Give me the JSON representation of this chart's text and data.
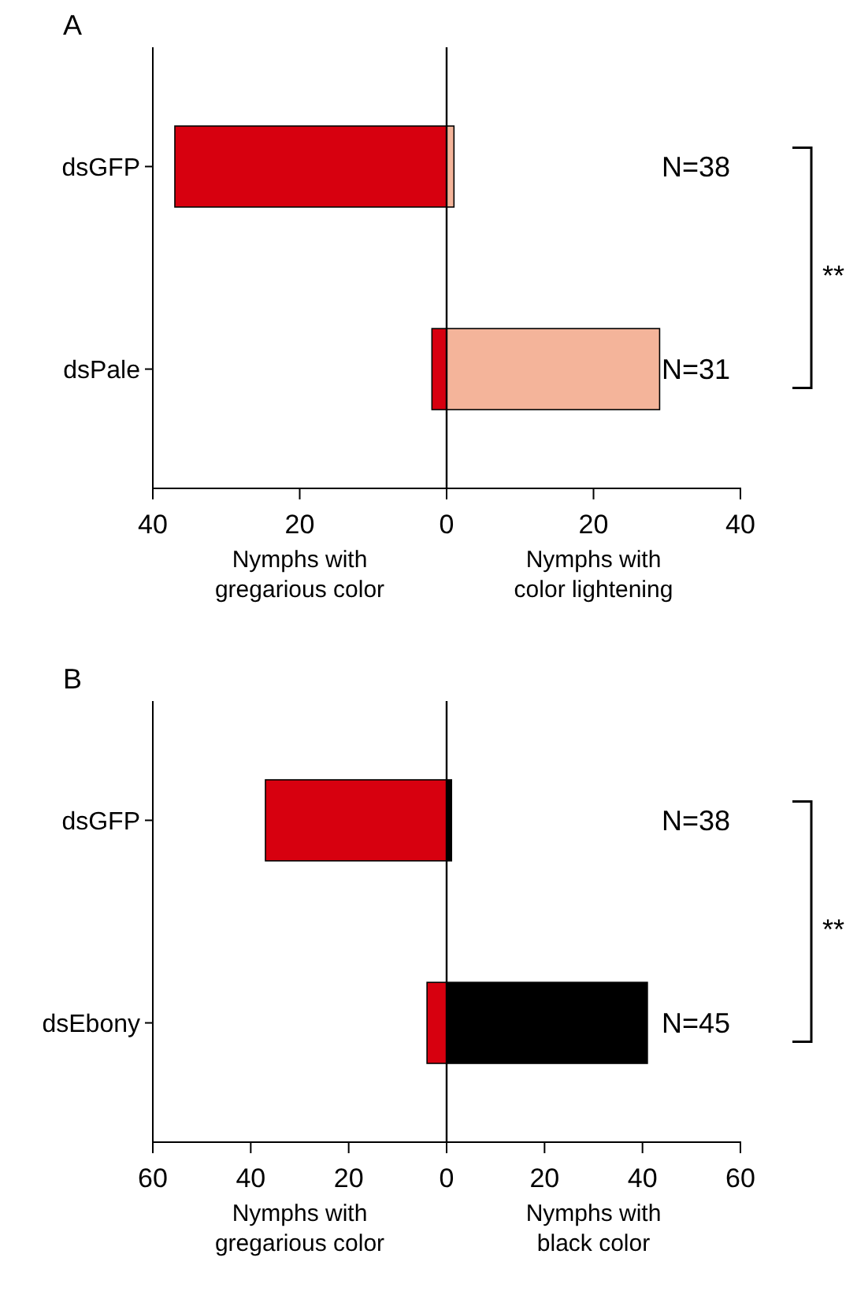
{
  "chart_data": [
    {
      "type": "bar",
      "title": "A",
      "orientation": "horizontal",
      "stacked": true,
      "categories": [
        "dsGFP",
        "dsPale"
      ],
      "series": [
        {
          "color": "#d7000f",
          "values": [
            -37,
            -2
          ]
        },
        {
          "color": "#f4b49a",
          "values": [
            1,
            29
          ]
        }
      ],
      "xlim": [
        -40,
        40
      ],
      "xticks": [
        {
          "value": -40,
          "label": "40"
        },
        {
          "value": -20,
          "label": "20"
        },
        0,
        20,
        40
      ],
      "annotations": [
        "Nymphs with gregarious color",
        "Nymphs with color lightening",
        "N=38",
        "N=31",
        "**"
      ]
    },
    {
      "type": "bar",
      "title": "B",
      "orientation": "horizontal",
      "stacked": true,
      "categories": [
        "dsGFP",
        "dsEbony"
      ],
      "series": [
        {
          "color": "#d7000f",
          "values": [
            -37,
            -4
          ]
        },
        {
          "color": "#000000",
          "values": [
            1,
            41
          ]
        }
      ],
      "xlim": [
        -60,
        60
      ],
      "xticks": [
        {
          "value": -60,
          "label": "60"
        },
        {
          "value": -40,
          "label": "40"
        },
        {
          "value": -20,
          "label": "20"
        },
        0,
        20,
        40,
        60
      ],
      "annotations": [
        "Nymphs with gregarious color",
        "Nymphs with black color",
        "N=38",
        "N=45",
        "**"
      ]
    }
  ]
}
